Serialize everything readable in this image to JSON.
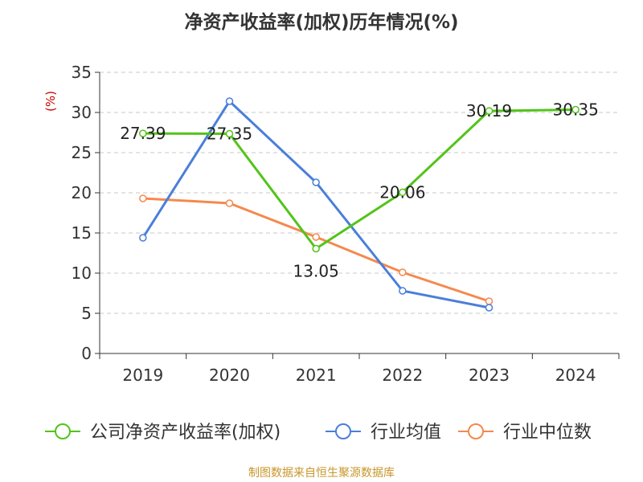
{
  "title": "净资产收益率(加权)历年情况(%)",
  "source_note": "制图数据来自恒生聚源数据库",
  "chart_data": {
    "type": "line",
    "title": "净资产收益率(加权)历年情况(%)",
    "ylabel": "(%)",
    "xlabel": "",
    "categories": [
      "2019",
      "2020",
      "2021",
      "2022",
      "2023",
      "2024"
    ],
    "ylim": [
      0,
      35
    ],
    "yticks": [
      0,
      5,
      10,
      15,
      20,
      25,
      30,
      35
    ],
    "grid": "horizontal dashed",
    "legend_position": "bottom",
    "series": [
      {
        "name": "公司净资产收益率(加权)",
        "color": "#52c41a",
        "values": [
          27.39,
          27.35,
          13.05,
          20.06,
          30.19,
          30.35
        ],
        "labels": [
          "27.39",
          "27.35",
          "13.05",
          "20.06",
          "30.19",
          "30.35"
        ]
      },
      {
        "name": "行业均值",
        "color": "#4a7fd9",
        "values": [
          14.4,
          31.4,
          21.3,
          7.8,
          5.7,
          null
        ]
      },
      {
        "name": "行业中位数",
        "color": "#f5894e",
        "values": [
          19.3,
          18.7,
          14.5,
          10.1,
          6.5,
          null
        ]
      }
    ]
  }
}
